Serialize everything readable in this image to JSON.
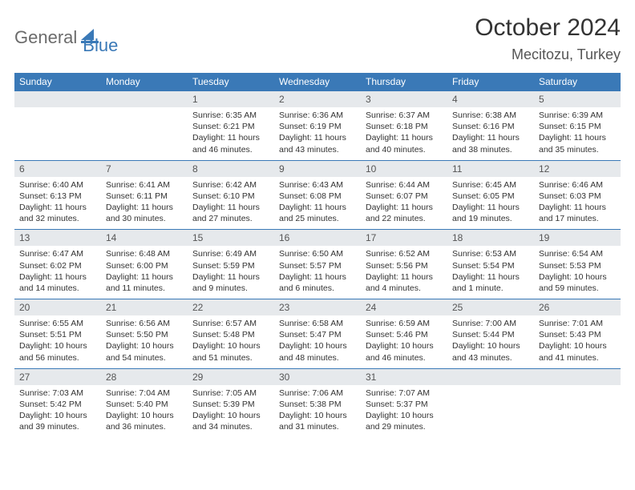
{
  "logo": {
    "general": "General",
    "blue": "Blue"
  },
  "title": "October 2024",
  "location": "Mecitozu, Turkey",
  "colors": {
    "accent": "#3a79b7",
    "header_bg": "#3a79b7",
    "daynum_bg": "#e6e9ec"
  },
  "day_headers": [
    "Sunday",
    "Monday",
    "Tuesday",
    "Wednesday",
    "Thursday",
    "Friday",
    "Saturday"
  ],
  "weeks": [
    [
      null,
      null,
      {
        "n": "1",
        "sr": "6:35 AM",
        "ss": "6:21 PM",
        "dl": "11 hours and 46 minutes."
      },
      {
        "n": "2",
        "sr": "6:36 AM",
        "ss": "6:19 PM",
        "dl": "11 hours and 43 minutes."
      },
      {
        "n": "3",
        "sr": "6:37 AM",
        "ss": "6:18 PM",
        "dl": "11 hours and 40 minutes."
      },
      {
        "n": "4",
        "sr": "6:38 AM",
        "ss": "6:16 PM",
        "dl": "11 hours and 38 minutes."
      },
      {
        "n": "5",
        "sr": "6:39 AM",
        "ss": "6:15 PM",
        "dl": "11 hours and 35 minutes."
      }
    ],
    [
      {
        "n": "6",
        "sr": "6:40 AM",
        "ss": "6:13 PM",
        "dl": "11 hours and 32 minutes."
      },
      {
        "n": "7",
        "sr": "6:41 AM",
        "ss": "6:11 PM",
        "dl": "11 hours and 30 minutes."
      },
      {
        "n": "8",
        "sr": "6:42 AM",
        "ss": "6:10 PM",
        "dl": "11 hours and 27 minutes."
      },
      {
        "n": "9",
        "sr": "6:43 AM",
        "ss": "6:08 PM",
        "dl": "11 hours and 25 minutes."
      },
      {
        "n": "10",
        "sr": "6:44 AM",
        "ss": "6:07 PM",
        "dl": "11 hours and 22 minutes."
      },
      {
        "n": "11",
        "sr": "6:45 AM",
        "ss": "6:05 PM",
        "dl": "11 hours and 19 minutes."
      },
      {
        "n": "12",
        "sr": "6:46 AM",
        "ss": "6:03 PM",
        "dl": "11 hours and 17 minutes."
      }
    ],
    [
      {
        "n": "13",
        "sr": "6:47 AM",
        "ss": "6:02 PM",
        "dl": "11 hours and 14 minutes."
      },
      {
        "n": "14",
        "sr": "6:48 AM",
        "ss": "6:00 PM",
        "dl": "11 hours and 11 minutes."
      },
      {
        "n": "15",
        "sr": "6:49 AM",
        "ss": "5:59 PM",
        "dl": "11 hours and 9 minutes."
      },
      {
        "n": "16",
        "sr": "6:50 AM",
        "ss": "5:57 PM",
        "dl": "11 hours and 6 minutes."
      },
      {
        "n": "17",
        "sr": "6:52 AM",
        "ss": "5:56 PM",
        "dl": "11 hours and 4 minutes."
      },
      {
        "n": "18",
        "sr": "6:53 AM",
        "ss": "5:54 PM",
        "dl": "11 hours and 1 minute."
      },
      {
        "n": "19",
        "sr": "6:54 AM",
        "ss": "5:53 PM",
        "dl": "10 hours and 59 minutes."
      }
    ],
    [
      {
        "n": "20",
        "sr": "6:55 AM",
        "ss": "5:51 PM",
        "dl": "10 hours and 56 minutes."
      },
      {
        "n": "21",
        "sr": "6:56 AM",
        "ss": "5:50 PM",
        "dl": "10 hours and 54 minutes."
      },
      {
        "n": "22",
        "sr": "6:57 AM",
        "ss": "5:48 PM",
        "dl": "10 hours and 51 minutes."
      },
      {
        "n": "23",
        "sr": "6:58 AM",
        "ss": "5:47 PM",
        "dl": "10 hours and 48 minutes."
      },
      {
        "n": "24",
        "sr": "6:59 AM",
        "ss": "5:46 PM",
        "dl": "10 hours and 46 minutes."
      },
      {
        "n": "25",
        "sr": "7:00 AM",
        "ss": "5:44 PM",
        "dl": "10 hours and 43 minutes."
      },
      {
        "n": "26",
        "sr": "7:01 AM",
        "ss": "5:43 PM",
        "dl": "10 hours and 41 minutes."
      }
    ],
    [
      {
        "n": "27",
        "sr": "7:03 AM",
        "ss": "5:42 PM",
        "dl": "10 hours and 39 minutes."
      },
      {
        "n": "28",
        "sr": "7:04 AM",
        "ss": "5:40 PM",
        "dl": "10 hours and 36 minutes."
      },
      {
        "n": "29",
        "sr": "7:05 AM",
        "ss": "5:39 PM",
        "dl": "10 hours and 34 minutes."
      },
      {
        "n": "30",
        "sr": "7:06 AM",
        "ss": "5:38 PM",
        "dl": "10 hours and 31 minutes."
      },
      {
        "n": "31",
        "sr": "7:07 AM",
        "ss": "5:37 PM",
        "dl": "10 hours and 29 minutes."
      },
      null,
      null
    ]
  ],
  "labels": {
    "sunrise": "Sunrise: ",
    "sunset": "Sunset: ",
    "daylight": "Daylight: "
  }
}
